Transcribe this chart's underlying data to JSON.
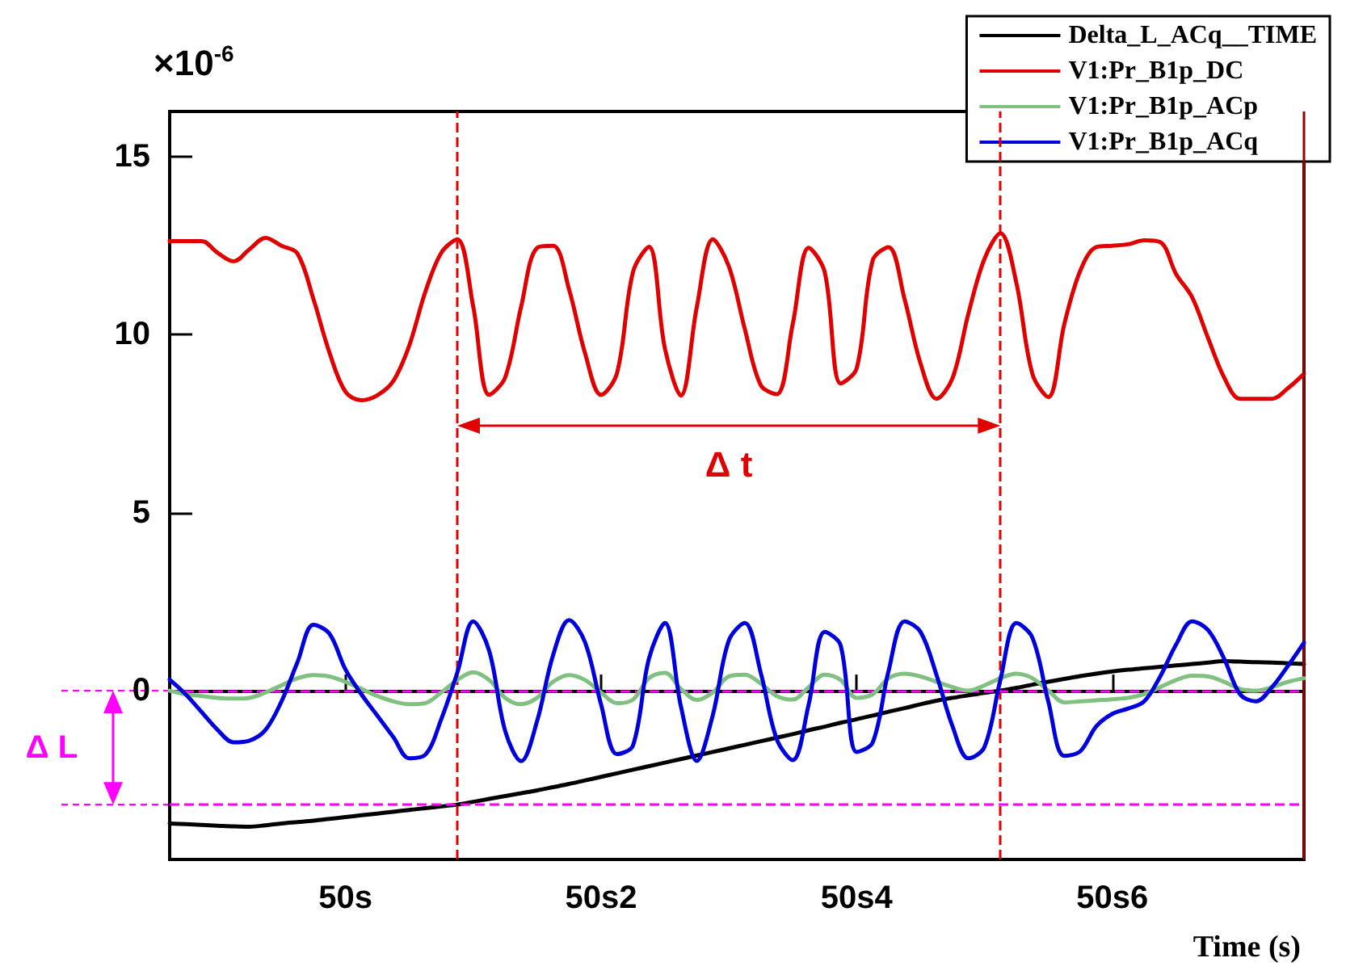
{
  "chart_data": {
    "type": "line",
    "xlabel": "Time (s)",
    "ylabel": "×10$^{-6}$",
    "categories": [
      null,
      null,
      null,
      null,
      null,
      null,
      null,
      null,
      null,
      null,
      null,
      "50s",
      null,
      null,
      null,
      null,
      null,
      null,
      null,
      null,
      null,
      null,
      null,
      null,
      null,
      null,
      null,
      "50s2",
      null,
      null,
      null,
      null,
      null,
      null,
      null,
      null,
      null,
      null,
      null,
      null,
      null,
      null,
      null,
      "50s4",
      null,
      null,
      null,
      null,
      null,
      null,
      null,
      null,
      null,
      null,
      null,
      null,
      null,
      null,
      null,
      "50s6",
      null,
      null,
      null,
      null,
      null,
      null,
      null,
      null,
      null,
      null,
      null,
      null
    ],
    "ylim": [
      -4.74,
      16.27
    ],
    "yticks": [
      0,
      5,
      10,
      15
    ],
    "legend": "top right",
    "marker": "none",
    "line_style": "solid",
    "series": [
      {
        "name": "Delta_L_ACq__TIME",
        "color": "#000000",
        "values": [
          -3.73,
          -3.75,
          -3.77,
          -3.79,
          -3.81,
          -3.82,
          -3.78,
          -3.73,
          -3.69,
          -3.65,
          -3.6,
          -3.55,
          -3.5,
          -3.45,
          -3.4,
          -3.35,
          -3.3,
          -3.25,
          -3.2,
          -3.12,
          -3.04,
          -2.96,
          -2.88,
          -2.8,
          -2.71,
          -2.62,
          -2.52,
          -2.42,
          -2.32,
          -2.22,
          -2.12,
          -2.02,
          -1.92,
          -1.82,
          -1.72,
          -1.62,
          -1.52,
          -1.42,
          -1.32,
          -1.22,
          -1.11,
          -1.01,
          -0.9,
          -0.8,
          -0.7,
          -0.59,
          -0.49,
          -0.38,
          -0.28,
          -0.2,
          -0.13,
          -0.06,
          0,
          0.08,
          0.17,
          0.25,
          0.33,
          0.41,
          0.48,
          0.54,
          0.59,
          0.63,
          0.67,
          0.71,
          0.75,
          0.79,
          0.83,
          0.82,
          0.8,
          0.79,
          0.77,
          0.75
        ]
      },
      {
        "name": "V1:Pr_B1p_DC",
        "color": "#e00000",
        "values": [
          12.63,
          12.63,
          12.63,
          12.3,
          12.06,
          12.4,
          12.72,
          12.5,
          12.28,
          11.0,
          9.5,
          8.4,
          8.16,
          8.3,
          8.7,
          9.7,
          11.2,
          12.3,
          12.68,
          10.79,
          8.31,
          8.8,
          10.79,
          12.44,
          12.5,
          11.27,
          9.48,
          8.31,
          8.92,
          11.76,
          12.47,
          9.61,
          8.29,
          10.79,
          12.68,
          11.92,
          10.16,
          8.58,
          8.33,
          10.3,
          12.44,
          11.76,
          8.63,
          9.05,
          12.08,
          12.46,
          11.0,
          9.19,
          8.2,
          8.78,
          10.6,
          12.13,
          12.85,
          11.45,
          8.9,
          8.25,
          10.3,
          11.8,
          12.46,
          12.5,
          12.54,
          12.65,
          12.6,
          11.7,
          11.05,
          9.9,
          8.8,
          8.2,
          8.2,
          8.2,
          8.5,
          8.9
        ]
      },
      {
        "name": "V1:Pr_B1p_ACp",
        "color": "#80c080",
        "values": [
          0,
          -0.1,
          -0.15,
          -0.2,
          -0.22,
          -0.2,
          -0.05,
          0.15,
          0.35,
          0.44,
          0.4,
          0.25,
          0.05,
          -0.15,
          -0.3,
          -0.38,
          -0.35,
          -0.05,
          0.3,
          0.52,
          0.3,
          -0.2,
          -0.38,
          -0.2,
          0.25,
          0.44,
          0.3,
          -0.05,
          -0.35,
          -0.25,
          0.35,
          0.5,
          0.05,
          -0.26,
          -0.05,
          0.4,
          0.45,
          0.2,
          -0.15,
          -0.25,
          0.1,
          0.45,
          0.3,
          -0.2,
          -0.1,
          0.35,
          0.48,
          0.4,
          0.25,
          0.1,
          0,
          0.15,
          0.35,
          0.48,
          0.35,
          0,
          -0.33,
          -0.3,
          -0.27,
          -0.24,
          -0.2,
          -0.1,
          0.1,
          0.3,
          0.42,
          0.4,
          0.25,
          0.05,
          0,
          0.1,
          0.25,
          0.35
        ]
      },
      {
        "name": "V1:Pr_B1p_ACq",
        "color": "#0000dd",
        "values": [
          0.31,
          -0.1,
          -0.6,
          -1.1,
          -1.45,
          -1.4,
          -1.1,
          -0.3,
          0.8,
          1.85,
          1.6,
          0.6,
          -0.1,
          -0.7,
          -1.3,
          -1.9,
          -1.8,
          -0.8,
          0.5,
          1.95,
          1.12,
          -1.13,
          -1.98,
          -0.85,
          1.0,
          1.98,
          1.36,
          -0.38,
          -1.78,
          -1.54,
          0.9,
          1.9,
          -0.44,
          -1.97,
          -0.68,
          1.41,
          1.9,
          0.5,
          -1.36,
          -1.95,
          -0.38,
          1.65,
          1.27,
          -1.72,
          -1.46,
          0.56,
          1.95,
          1.65,
          0.44,
          -1.0,
          -1.9,
          -1.58,
          0.31,
          1.9,
          1.49,
          -0.31,
          -1.83,
          -1.7,
          -1.0,
          -0.65,
          -0.5,
          -0.3,
          0.4,
          1.3,
          1.95,
          1.7,
          0.9,
          -0.1,
          -0.3,
          0.1,
          0.7,
          1.35
        ]
      }
    ],
    "ref_lines": [
      {
        "axis": "y",
        "value": 0,
        "color": "#ff00ff",
        "line_style": "dashed"
      },
      {
        "axis": "y",
        "value": -3.2,
        "color": "#ff00ff",
        "line_style": "dashed"
      }
    ],
    "annotations": [
      "Δ t",
      "Δ L"
    ]
  }
}
